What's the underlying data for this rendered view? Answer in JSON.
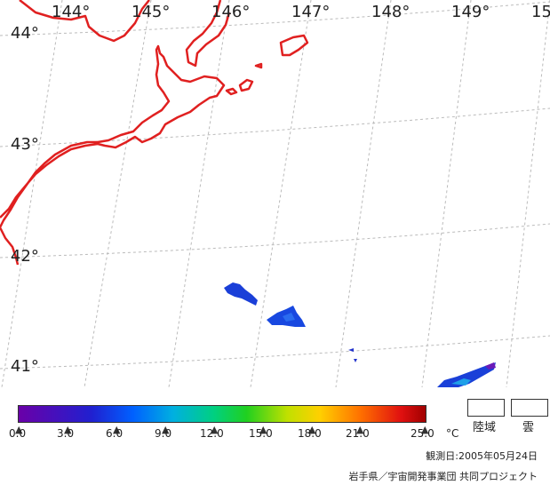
{
  "map": {
    "longitude_labels": [
      "144°",
      "145°",
      "146°",
      "147°",
      "148°",
      "149°",
      "15"
    ],
    "latitude_labels": [
      "44°",
      "43°",
      "42°",
      "41°"
    ],
    "coastline_color": "#e02020",
    "grid_color": "#bbbbbb"
  },
  "colorbar": {
    "ticks": [
      "0.0",
      "3.0",
      "6.0",
      "9.0",
      "12.0",
      "15.0",
      "18.0",
      "21.0",
      "25.0"
    ],
    "unit": "°C",
    "min": 0.0,
    "max": 25.0
  },
  "legend": {
    "land_label": "陸域",
    "cloud_label": "雲"
  },
  "footer": {
    "observation_date": "観測日:2005年05月24日",
    "credit": "岩手県／宇宙開発事業団 共同プロジェクト"
  }
}
